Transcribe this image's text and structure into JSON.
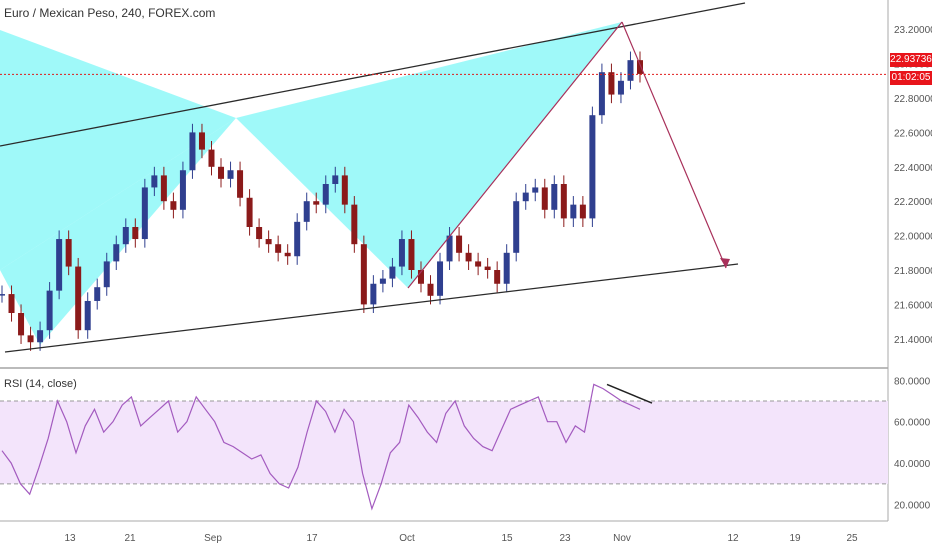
{
  "header": {
    "title": "Euro / Mexican Peso, 240, FOREX.com"
  },
  "rsi": {
    "title": "RSI (14, close)"
  },
  "price": {
    "last": "22.93736",
    "countdown": "01:02:05"
  },
  "colors": {
    "up": "#2f3f8f",
    "down": "#8b1a1a",
    "pattern_fill": "#7ff7f7",
    "channel": "#2b2b2b",
    "projection": "#a8305a",
    "hline": "#e01b1b",
    "rsi_line": "#a35bbf",
    "rsi_band": "#f3e4fb"
  },
  "chart_data": [
    {
      "type": "candlestick",
      "title": "Euro / Mexican Peso, 240, FOREX.com",
      "ylim": [
        21.3,
        23.3
      ],
      "y_ticks": [
        "23.20000",
        "23.00000",
        "22.80000",
        "22.60000",
        "22.40000",
        "22.20000",
        "22.00000",
        "21.80000",
        "21.60000",
        "21.40000"
      ],
      "x_ticks": [
        "13",
        "21",
        "Sep",
        "17",
        "Oct",
        "15",
        "23",
        "Nov",
        "12",
        "19",
        "25"
      ],
      "series_close_path": [
        [
          0,
          21.66
        ],
        [
          2,
          21.55
        ],
        [
          4,
          21.42
        ],
        [
          5,
          21.38
        ],
        [
          6,
          21.45
        ],
        [
          7,
          21.68
        ],
        [
          8,
          21.98
        ],
        [
          9,
          21.82
        ],
        [
          10,
          21.45
        ],
        [
          11,
          21.62
        ],
        [
          12,
          21.7
        ],
        [
          13,
          21.85
        ],
        [
          14,
          21.95
        ],
        [
          15,
          22.05
        ],
        [
          16,
          21.98
        ],
        [
          17,
          22.28
        ],
        [
          18,
          22.35
        ],
        [
          19,
          22.2
        ],
        [
          20,
          22.15
        ],
        [
          21,
          22.38
        ],
        [
          22,
          22.6
        ],
        [
          23,
          22.5
        ],
        [
          24,
          22.4
        ],
        [
          25,
          22.33
        ],
        [
          26,
          22.38
        ],
        [
          27,
          22.22
        ],
        [
          28,
          22.05
        ],
        [
          29,
          21.98
        ],
        [
          30,
          21.95
        ],
        [
          31,
          21.9
        ],
        [
          32,
          21.88
        ],
        [
          33,
          22.08
        ],
        [
          34,
          22.2
        ],
        [
          35,
          22.18
        ],
        [
          36,
          22.3
        ],
        [
          37,
          22.35
        ],
        [
          38,
          22.18
        ],
        [
          39,
          21.95
        ],
        [
          40,
          21.6
        ],
        [
          41,
          21.72
        ],
        [
          42,
          21.75
        ],
        [
          43,
          21.82
        ],
        [
          44,
          21.98
        ],
        [
          45,
          21.8
        ],
        [
          46,
          21.72
        ],
        [
          47,
          21.65
        ],
        [
          48,
          21.85
        ],
        [
          49,
          22.0
        ],
        [
          50,
          21.9
        ],
        [
          51,
          21.85
        ],
        [
          52,
          21.82
        ],
        [
          53,
          21.8
        ],
        [
          54,
          21.72
        ],
        [
          55,
          21.9
        ],
        [
          56,
          22.2
        ],
        [
          57,
          22.25
        ],
        [
          58,
          22.28
        ],
        [
          59,
          22.15
        ],
        [
          60,
          22.3
        ],
        [
          61,
          22.1
        ],
        [
          62,
          22.18
        ],
        [
          63,
          22.1
        ],
        [
          64,
          22.7
        ],
        [
          65,
          22.95
        ],
        [
          66,
          22.82
        ],
        [
          67,
          22.9
        ],
        [
          68,
          23.02
        ],
        [
          69,
          22.94
        ]
      ],
      "last_price": 22.93736
    },
    {
      "type": "line",
      "title": "RSI (14, close)",
      "ylim": [
        14,
        84
      ],
      "y_ticks": [
        "80.0000",
        "60.0000",
        "40.0000",
        "20.0000"
      ],
      "bands": [
        30,
        70
      ],
      "values": [
        46,
        40,
        30,
        25,
        38,
        52,
        70,
        60,
        45,
        58,
        66,
        55,
        60,
        68,
        72,
        58,
        62,
        66,
        70,
        55,
        60,
        72,
        66,
        60,
        50,
        48,
        45,
        42,
        44,
        35,
        30,
        28,
        38,
        55,
        70,
        65,
        55,
        66,
        60,
        35,
        18,
        30,
        45,
        50,
        68,
        62,
        55,
        50,
        64,
        70,
        58,
        52,
        48,
        46,
        56,
        66,
        68,
        70,
        72,
        60,
        60,
        50,
        58,
        55,
        78,
        76,
        73,
        70,
        68,
        66
      ]
    }
  ]
}
